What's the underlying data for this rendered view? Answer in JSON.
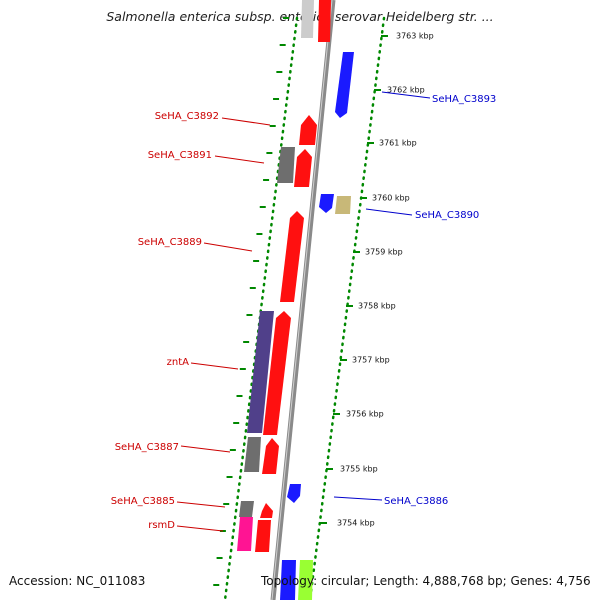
{
  "title": "Salmonella enterica subsp. enterica serovar Heidelberg str. ...",
  "accession": "Accession: NC_011083",
  "topology": "Topology: circular; Length: 4,888,768 bp; Genes: 4,756",
  "colors": {
    "forward_label": "#cc0000",
    "reverse_label": "#0000cc",
    "forward_cds": "#ff1010",
    "reverse_cds": "#1a1aff",
    "pseudo_gray": "#6e6e6e",
    "rRNA_like": "#c8b878",
    "znt": "#50408a",
    "rsmD_pink": "#ff1493",
    "green_feature": "#99ff33",
    "tick_green": "#008800",
    "backbone": "#8a8a8a"
  },
  "tick_labels": [
    "3763 kbp",
    "3762 kbp",
    "3761 kbp",
    "3760 kbp",
    "3759 kbp",
    "3758 kbp",
    "3757 kbp",
    "3756 kbp",
    "3755 kbp",
    "3754 kbp"
  ],
  "gene_labels_left": [
    "SeHA_C3892",
    "SeHA_C3891",
    "SeHA_C3889",
    "zntA",
    "SeHA_C3887",
    "SeHA_C3885",
    "rsmD"
  ],
  "gene_labels_right": [
    "SeHA_C3893",
    "SeHA_C3890",
    "SeHA_C3886"
  ]
}
